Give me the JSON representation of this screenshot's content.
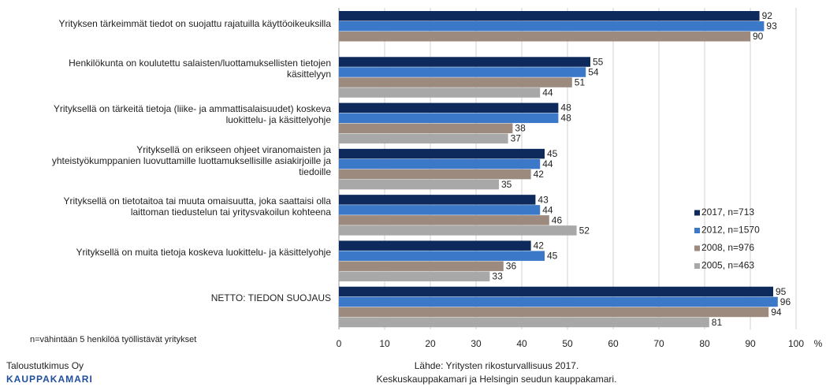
{
  "chart_data": {
    "type": "hbar",
    "categories": [
      "Yrityksen tärkeimmät tiedot on suojattu rajatuilla käyttöoikeuksilla",
      "Henkilökunta on koulutettu salaisten/luottamuksellisten tietojen käsittelyyn",
      "Yrityksellä on tärkeitä tietoja (liike- ja ammattisalaisuudet) koskeva luokittelu- ja käsittelyohje",
      "Yrityksellä on erikseen ohjeet viranomaisten ja yhteistyökumppanien luovuttamille luottamuksellisille asiakirjoille ja tiedoille",
      "Yrityksellä on tietotaitoa tai muuta omaisuutta, joka saattaisi olla laittoman tiedustelun tai yritysvakoilun kohteena",
      "Yrityksellä on muita tietoja koskeva luokittelu- ja käsittelyohje",
      "NETTO: TIEDON SUOJAUS"
    ],
    "series": [
      {
        "name": "2017, n=713",
        "color": "#0e2a5c",
        "values": [
          92,
          55,
          48,
          45,
          43,
          42,
          95
        ]
      },
      {
        "name": "2012, n=1570",
        "color": "#3b78c8",
        "values": [
          93,
          54,
          48,
          44,
          44,
          45,
          96
        ]
      },
      {
        "name": "2008, n=976",
        "color": "#9b8a7d",
        "values": [
          90,
          51,
          38,
          42,
          46,
          36,
          94
        ]
      },
      {
        "name": "2005, n=463",
        "color": "#a8a8a8",
        "values": [
          null,
          44,
          37,
          35,
          52,
          33,
          81
        ]
      }
    ],
    "xlim": [
      0,
      100
    ],
    "xticks": [
      0,
      10,
      20,
      30,
      40,
      50,
      60,
      70,
      80,
      90,
      100
    ],
    "x_unit": "%",
    "grid": true,
    "legend": "right"
  },
  "note": "n=vähintään 5 henkilöä työllistävät yritykset",
  "brand": {
    "line1": "Taloustutkimus Oy",
    "line2": "KAUPPAKAMARI"
  },
  "source": {
    "line1": "Lähde: Yritysten rikosturvallisuus 2017.",
    "line2": "Keskuskauppakamari ja Helsingin seudun kauppakamari."
  }
}
